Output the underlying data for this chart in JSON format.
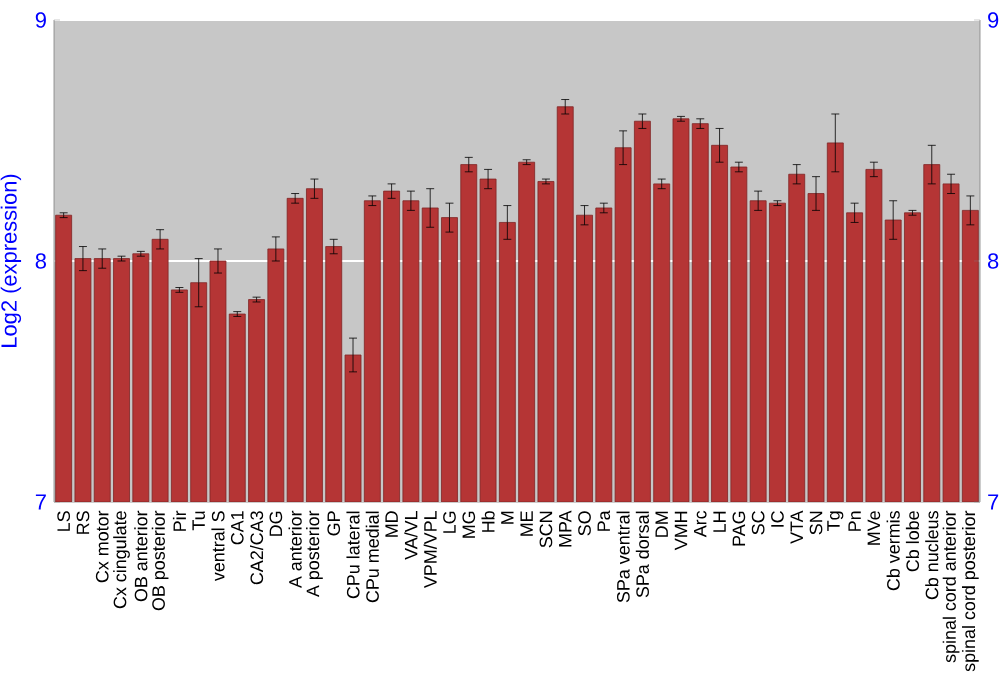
{
  "chart_data": {
    "type": "bar",
    "ylabel": "Log2 (expression)",
    "categories": [
      "LS",
      "RS",
      "Cx motor",
      "Cx cingulate",
      "OB anterior",
      "OB posterior",
      "Pir",
      "Tu",
      "ventral S",
      "CA1",
      "CA2/CA3",
      "DG",
      "A anterior",
      "A posterior",
      "GP",
      "CPu lateral",
      "CPu medial",
      "MD",
      "VA/VL",
      "VPM/VPL",
      "LG",
      "MG",
      "Hb",
      "M",
      "ME",
      "SCN",
      "MPA",
      "SO",
      "Pa",
      "SPa ventral",
      "SPa dorsal",
      "DM",
      "VMH",
      "Arc",
      "LH",
      "PAG",
      "SC",
      "IC",
      "VTA",
      "SN",
      "Tg",
      "Pn",
      "MVe",
      "Cb vermis",
      "Cb lobe",
      "Cb nucleus",
      "spinal cord anterior",
      "spinal cord posterior"
    ],
    "values": [
      8.19,
      8.01,
      8.01,
      8.01,
      8.03,
      8.09,
      7.88,
      7.91,
      8.0,
      7.78,
      7.84,
      8.05,
      8.26,
      8.3,
      8.06,
      7.61,
      8.25,
      8.29,
      8.25,
      8.22,
      8.18,
      8.4,
      8.34,
      8.16,
      8.41,
      8.33,
      8.64,
      8.19,
      8.22,
      8.47,
      8.58,
      8.32,
      8.59,
      8.57,
      8.48,
      8.39,
      8.25,
      8.24,
      8.36,
      8.28,
      8.49,
      8.2,
      8.38,
      8.17,
      8.2,
      8.4,
      8.32,
      8.21
    ],
    "errors": [
      0.01,
      0.05,
      0.04,
      0.01,
      0.01,
      0.04,
      0.01,
      0.1,
      0.05,
      0.01,
      0.01,
      0.05,
      0.02,
      0.04,
      0.03,
      0.07,
      0.02,
      0.03,
      0.04,
      0.08,
      0.06,
      0.03,
      0.04,
      0.07,
      0.01,
      0.01,
      0.03,
      0.04,
      0.02,
      0.07,
      0.03,
      0.02,
      0.01,
      0.02,
      0.07,
      0.02,
      0.04,
      0.01,
      0.04,
      0.07,
      0.12,
      0.04,
      0.03,
      0.08,
      0.01,
      0.08,
      0.04,
      0.06
    ],
    "color": "#b53535",
    "ylim": [
      7,
      9
    ],
    "yticks": [
      7,
      8,
      9
    ],
    "y2lim": [
      7,
      9
    ],
    "y2ticks": [
      7,
      8,
      9
    ],
    "grid": "y"
  }
}
